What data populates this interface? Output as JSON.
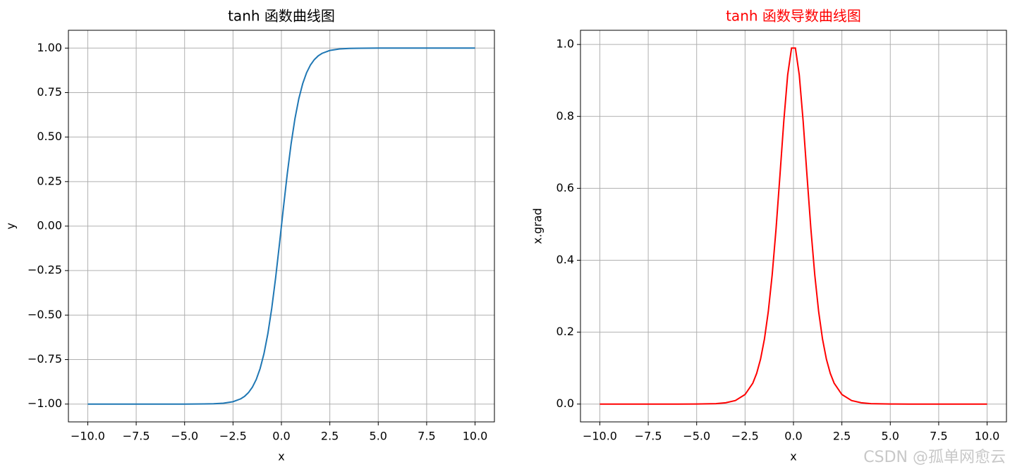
{
  "chart_data": [
    {
      "type": "line",
      "title": "tanh 函数曲线图",
      "title_color": "#000000",
      "xlabel": "x",
      "ylabel": "y",
      "color": "#1f77b4",
      "grid": true,
      "x": [
        -10,
        -9,
        -8,
        -7,
        -6,
        -5,
        -4,
        -3.5,
        -3,
        -2.5,
        -2.1,
        -1.9,
        -1.7,
        -1.5,
        -1.3,
        -1.1,
        -0.9,
        -0.7,
        -0.5,
        -0.3,
        -0.1,
        0.1,
        0.3,
        0.5,
        0.7,
        0.9,
        1.1,
        1.3,
        1.5,
        1.7,
        1.9,
        2.1,
        2.5,
        3,
        3.5,
        4,
        5,
        6,
        7,
        8,
        9,
        10
      ],
      "values": [
        -1,
        -1,
        -1,
        -1,
        -1,
        -0.9999,
        -0.9993,
        -0.9982,
        -0.995,
        -0.9866,
        -0.9705,
        -0.9562,
        -0.9354,
        -0.9052,
        -0.8617,
        -0.8005,
        -0.7163,
        -0.6044,
        -0.4621,
        -0.2913,
        -0.0997,
        0.0997,
        0.2913,
        0.4621,
        0.6044,
        0.7163,
        0.8005,
        0.8617,
        0.9052,
        0.9354,
        0.9562,
        0.9705,
        0.9866,
        0.995,
        0.9982,
        0.9993,
        0.9999,
        1,
        1,
        1,
        1,
        1
      ],
      "xlim": [
        -11,
        11
      ],
      "ylim": [
        -1.1,
        1.1
      ],
      "xticks": [
        {
          "value": -10,
          "label": "−10.0"
        },
        {
          "value": -7.5,
          "label": "−7.5"
        },
        {
          "value": -5,
          "label": "−5.0"
        },
        {
          "value": -2.5,
          "label": "−2.5"
        },
        {
          "value": 0,
          "label": "0.0"
        },
        {
          "value": 2.5,
          "label": "2.5"
        },
        {
          "value": 5,
          "label": "5.0"
        },
        {
          "value": 7.5,
          "label": "7.5"
        },
        {
          "value": 10,
          "label": "10.0"
        }
      ],
      "yticks": [
        {
          "value": -1,
          "label": "−1.00"
        },
        {
          "value": -0.75,
          "label": "−0.75"
        },
        {
          "value": -0.5,
          "label": "−0.50"
        },
        {
          "value": -0.25,
          "label": "−0.25"
        },
        {
          "value": 0,
          "label": "0.00"
        },
        {
          "value": 0.25,
          "label": "0.25"
        },
        {
          "value": 0.5,
          "label": "0.50"
        },
        {
          "value": 0.75,
          "label": "0.75"
        },
        {
          "value": 1,
          "label": "1.00"
        }
      ]
    },
    {
      "type": "line",
      "title": "tanh 函数导数曲线图",
      "title_color": "#ff0000",
      "xlabel": "x",
      "ylabel": "x.grad",
      "color": "#ff0000",
      "grid": true,
      "x": [
        -10,
        -9,
        -8,
        -7,
        -6,
        -5,
        -4,
        -3.5,
        -3,
        -2.5,
        -2.1,
        -1.9,
        -1.7,
        -1.5,
        -1.3,
        -1.1,
        -0.9,
        -0.7,
        -0.5,
        -0.3,
        -0.1,
        0.1,
        0.3,
        0.5,
        0.7,
        0.9,
        1.1,
        1.3,
        1.5,
        1.7,
        1.9,
        2.1,
        2.5,
        3,
        3.5,
        4,
        5,
        6,
        7,
        8,
        9,
        10
      ],
      "values": [
        0,
        0,
        0,
        0,
        0,
        0.0002,
        0.0013,
        0.0036,
        0.0099,
        0.0266,
        0.0582,
        0.0856,
        0.125,
        0.1807,
        0.2574,
        0.3592,
        0.4869,
        0.6347,
        0.7864,
        0.9151,
        0.9901,
        0.9901,
        0.9151,
        0.7864,
        0.6347,
        0.4869,
        0.3592,
        0.2574,
        0.1807,
        0.125,
        0.0856,
        0.0582,
        0.0266,
        0.0099,
        0.0036,
        0.0013,
        0.0002,
        0,
        0,
        0,
        0,
        0
      ],
      "xlim": [
        -11,
        11
      ],
      "ylim": [
        -0.0495,
        1.0395
      ],
      "xticks": [
        {
          "value": -10,
          "label": "−10.0"
        },
        {
          "value": -7.5,
          "label": "−7.5"
        },
        {
          "value": -5,
          "label": "−5.0"
        },
        {
          "value": -2.5,
          "label": "−2.5"
        },
        {
          "value": 0,
          "label": "0.0"
        },
        {
          "value": 2.5,
          "label": "2.5"
        },
        {
          "value": 5,
          "label": "5.0"
        },
        {
          "value": 7.5,
          "label": "7.5"
        },
        {
          "value": 10,
          "label": "10.0"
        }
      ],
      "yticks": [
        {
          "value": 0,
          "label": "0.0"
        },
        {
          "value": 0.2,
          "label": "0.2"
        },
        {
          "value": 0.4,
          "label": "0.4"
        },
        {
          "value": 0.6,
          "label": "0.6"
        },
        {
          "value": 0.8,
          "label": "0.8"
        },
        {
          "value": 1,
          "label": "1.0"
        }
      ]
    }
  ],
  "watermark": "CSDN @孤单网愈云"
}
